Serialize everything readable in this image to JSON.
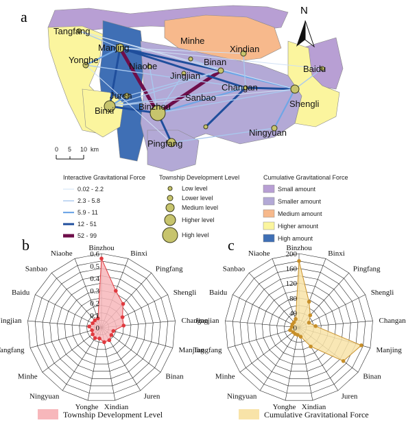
{
  "panel_letters": {
    "a": "a",
    "b": "b",
    "c": "c"
  },
  "north_label": "N",
  "scale": {
    "ticks": [
      "0",
      "5",
      "10"
    ],
    "unit": "km"
  },
  "map": {
    "townships": [
      "Tangfang",
      "Manjing",
      "Minhe",
      "Xindian",
      "Yonghe",
      "Niaohe",
      "Binan",
      "Baidu",
      "Jingjian",
      "Changan",
      "Juren",
      "Shengli",
      "Binxi",
      "Binzhou",
      "Sanbao",
      "Ningyuan",
      "Pingfang"
    ]
  },
  "legend": {
    "interactive": {
      "title": "Interactive Gravitational Force",
      "items": [
        "0.02 - 2.2",
        "2.3 - 5.8",
        "5.9 - 11",
        "12 - 51",
        "52 - 99"
      ],
      "colors": [
        "#cfe0f5",
        "#a9c8ee",
        "#6fa6e6",
        "#1f4e9c",
        "#6e0e4a"
      ]
    },
    "development": {
      "title": "Township Development Level",
      "items": [
        "Low level",
        "Lower level",
        "Medium level",
        "Higher level",
        "High level"
      ]
    },
    "cumulative": {
      "title": "Cumulative Gravitational Force",
      "items": [
        "Small amount",
        "Smaller amount",
        "Medium amount",
        "Higher amount",
        "High amount"
      ],
      "colors": [
        "#b89fd4",
        "#b3a9d6",
        "#f7b98c",
        "#fbf59e",
        "#3f6fb5"
      ]
    }
  },
  "chart_data": [
    {
      "type": "radar",
      "title": "",
      "categories": [
        "Binzhou",
        "Binxi",
        "Pingfang",
        "Shengli",
        "Changan",
        "Manjing",
        "Binan",
        "Juren",
        "Xindian",
        "Yonghe",
        "Ningyuan",
        "Minhe",
        "Tangfang",
        "Jingjian",
        "Baidu",
        "Sanbao",
        "Niaohe"
      ],
      "series": [
        {
          "name": "Township Development Level",
          "values": [
            0.56,
            0.32,
            0.26,
            0.19,
            0.18,
            0.1,
            0.1,
            0.12,
            0.12,
            0.09,
            0.1,
            0.09,
            0.08,
            0.1,
            0.08,
            0.08,
            0.08
          ],
          "color": "#f7b7bb",
          "line": "#e03a3f"
        }
      ],
      "rlim": [
        0,
        0.6
      ],
      "ticks": [
        "0",
        "0.1",
        "0.2",
        "0.3",
        "0.4",
        "0.5",
        "0.6"
      ]
    },
    {
      "type": "radar",
      "title": "",
      "categories": [
        "Binzhou",
        "Binxi",
        "Pingfang",
        "Shengli",
        "Changan",
        "Manjing",
        "Binan",
        "Juren",
        "Xindian",
        "Yonghe",
        "Ningyuan",
        "Minhe",
        "Tangfang",
        "Jingjian",
        "Baidu",
        "Sanbao",
        "Niaohe"
      ],
      "series": [
        {
          "name": "Cumulative Gravitational Force",
          "values": [
            180,
            75,
            45,
            30,
            45,
            175,
            150,
            60,
            25,
            20,
            20,
            20,
            25,
            20,
            20,
            20,
            25
          ],
          "color": "#f8e3a8",
          "line": "#c8902a"
        }
      ],
      "rlim": [
        0,
        200
      ],
      "ticks": [
        "0",
        "40",
        "80",
        "120",
        "160",
        "200"
      ]
    }
  ]
}
